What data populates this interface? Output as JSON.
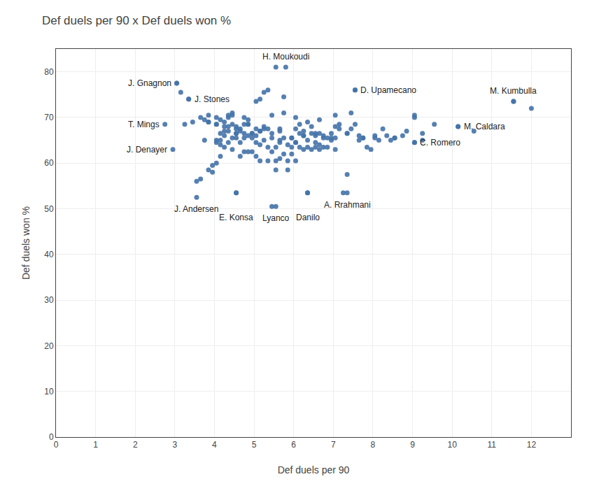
{
  "chart_data": {
    "type": "scatter",
    "title": "Def duels per 90 x Def duels won %",
    "x_label": "Def duels per 90",
    "y_label": "Def duels won %",
    "color": "#4472a8",
    "xlim": [
      0,
      13
    ],
    "ylim": [
      0,
      85
    ],
    "xticks": [
      0,
      1,
      2,
      3,
      4,
      5,
      6,
      7,
      8,
      9,
      10,
      11,
      12
    ],
    "yticks": [
      0,
      10,
      20,
      30,
      40,
      50,
      60,
      70,
      80
    ],
    "grid": true,
    "annotations": [
      {
        "text": "J. Gnagnon",
        "x": 3.05,
        "y": 77.5
      },
      {
        "text": "J. Stones",
        "x": 3.35,
        "y": 74.0
      },
      {
        "text": "T. Mings",
        "x": 2.75,
        "y": 68.5
      },
      {
        "text": "J. Denayer",
        "x": 2.95,
        "y": 63.0
      },
      {
        "text": "J. Andersen",
        "x": 3.55,
        "y": 52.5
      },
      {
        "text": "E. Konsa",
        "x": 4.55,
        "y": 53.5
      },
      {
        "text": "Lyanco",
        "x": 5.55,
        "y": 50.5
      },
      {
        "text": "Danilo",
        "x": 6.35,
        "y": 53.5
      },
      {
        "text": "A. Rrahmani",
        "x": 7.35,
        "y": 53.5
      },
      {
        "text": "H. Moukoudi",
        "x": 5.8,
        "y": 81.0
      },
      {
        "text": "D. Upamecano",
        "x": 7.55,
        "y": 76.0
      },
      {
        "text": "M. Kumbulla",
        "x": 11.55,
        "y": 73.5
      },
      {
        "text": "M. Caldara",
        "x": 10.15,
        "y": 68.0
      },
      {
        "text": "C. Romero",
        "x": 9.05,
        "y": 64.5
      }
    ],
    "x": [
      3.05,
      3.15,
      3.35,
      3.55,
      3.65,
      3.75,
      3.85,
      3.85,
      3.95,
      3.95,
      4.05,
      4.05,
      4.05,
      4.15,
      4.15,
      4.15,
      4.15,
      4.25,
      4.25,
      4.25,
      4.35,
      4.35,
      4.35,
      4.45,
      4.45,
      4.45,
      4.45,
      4.55,
      4.55,
      4.55,
      4.65,
      4.65,
      4.65,
      4.75,
      4.75,
      4.75,
      4.85,
      4.85,
      4.85,
      4.95,
      4.95,
      5.05,
      5.05,
      5.05,
      5.15,
      5.15,
      5.15,
      5.25,
      5.25,
      5.35,
      5.35,
      5.35,
      5.45,
      5.45,
      5.45,
      5.55,
      5.55,
      5.55,
      5.65,
      5.65,
      5.65,
      5.75,
      5.75,
      5.85,
      5.85,
      5.95,
      5.95,
      6.05,
      6.05,
      6.05,
      6.15,
      6.15,
      6.25,
      6.25,
      6.35,
      6.35,
      6.45,
      6.45,
      6.55,
      6.55,
      6.65,
      6.65,
      6.75,
      6.75,
      6.85,
      6.95,
      7.05,
      7.05,
      7.15,
      7.25,
      7.35,
      7.45,
      7.55,
      7.65,
      7.75,
      7.85,
      8.05,
      8.25,
      8.45,
      8.55,
      8.75,
      9.05,
      9.25,
      9.55,
      10.15,
      10.55,
      11.55,
      12.0,
      3.55,
      3.75,
      3.85,
      4.05,
      4.35,
      4.45,
      4.55,
      4.75,
      4.85,
      4.95,
      5.05,
      5.15,
      5.25,
      5.35,
      5.55,
      5.65,
      5.75,
      5.85,
      5.95,
      6.05,
      6.15,
      6.25,
      6.35,
      6.45,
      6.55,
      6.65,
      6.75,
      6.85,
      6.95,
      7.05,
      7.15,
      7.35,
      7.55,
      7.75,
      7.95,
      8.15,
      8.35,
      8.85,
      9.05,
      9.25,
      2.75,
      2.95,
      3.05,
      3.35,
      4.55,
      5.55,
      6.35,
      7.35,
      5.8,
      7.55,
      11.55,
      10.15,
      9.05,
      4.05,
      4.15,
      4.25,
      4.35,
      4.55,
      4.65,
      4.85,
      5.05,
      5.25,
      5.45,
      5.65,
      5.95,
      6.25,
      6.55,
      6.95,
      7.35,
      7.65,
      8.05,
      8.55,
      9.05,
      3.25,
      3.45,
      3.65,
      3.85,
      4.05,
      4.25,
      4.55,
      4.75,
      4.95,
      5.15,
      5.45,
      5.75,
      6.05,
      6.35,
      6.65,
      7.05,
      7.45
    ],
    "values": [
      77.5,
      75.5,
      74.0,
      56.0,
      56.5,
      65.0,
      69.0,
      58.5,
      58.0,
      59.5,
      68.5,
      65.0,
      60.0,
      69.5,
      66.5,
      64.0,
      61.5,
      68.0,
      67.0,
      63.5,
      70.0,
      67.0,
      64.5,
      68.5,
      65.5,
      70.5,
      63.0,
      65.5,
      68.0,
      53.5,
      67.5,
      64.5,
      61.5,
      68.5,
      65.5,
      62.5,
      69.5,
      66.0,
      62.5,
      66.5,
      62.5,
      67.5,
      64.5,
      61.5,
      67.0,
      64.0,
      60.5,
      68.0,
      65.0,
      67.5,
      63.5,
      60.5,
      50.5,
      66.5,
      62.5,
      63.5,
      60.5,
      58.5,
      67.5,
      64.5,
      61.0,
      65.5,
      62.0,
      64.0,
      60.5,
      65.5,
      62.0,
      67.5,
      64.5,
      60.5,
      66.5,
      63.5,
      66.0,
      63.0,
      53.5,
      65.0,
      66.5,
      63.0,
      66.0,
      63.5,
      66.5,
      63.0,
      66.0,
      63.5,
      65.5,
      66.5,
      65.5,
      63.0,
      67.5,
      53.5,
      66.5,
      67.5,
      76.0,
      66.0,
      65.5,
      63.5,
      65.5,
      67.5,
      65.0,
      65.5,
      66.0,
      70.5,
      65.0,
      68.5,
      68.0,
      67.0,
      73.5,
      72.0,
      52.5,
      69.5,
      69.0,
      70.0,
      70.5,
      71.0,
      66.5,
      70.0,
      68.5,
      66.5,
      73.5,
      74.0,
      75.5,
      76.0,
      81.0,
      67.0,
      74.5,
      58.5,
      63.5,
      64.5,
      68.5,
      67.0,
      63.5,
      68.0,
      66.5,
      64.0,
      65.5,
      63.5,
      65.5,
      68.0,
      68.5,
      57.5,
      68.5,
      65.5,
      63.0,
      65.0,
      66.0,
      67.0,
      64.5,
      66.5,
      68.5,
      63.0,
      77.5,
      74.0,
      53.5,
      50.5,
      53.5,
      53.5,
      81.0,
      76.0,
      73.5,
      68.0,
      64.5,
      64.5,
      65.0,
      66.0,
      68.0,
      66.5,
      67.0,
      68.5,
      66.0,
      67.5,
      65.5,
      65.0,
      65.5,
      66.0,
      64.5,
      65.0,
      66.5,
      65.0,
      66.0,
      65.5,
      70.0,
      68.5,
      69.0,
      70.0,
      70.5,
      68.5,
      69.0,
      67.5,
      66.5,
      65.5,
      67.0,
      70.5,
      71.0,
      70.0,
      69.0,
      69.5,
      70.5,
      71.0
    ]
  }
}
